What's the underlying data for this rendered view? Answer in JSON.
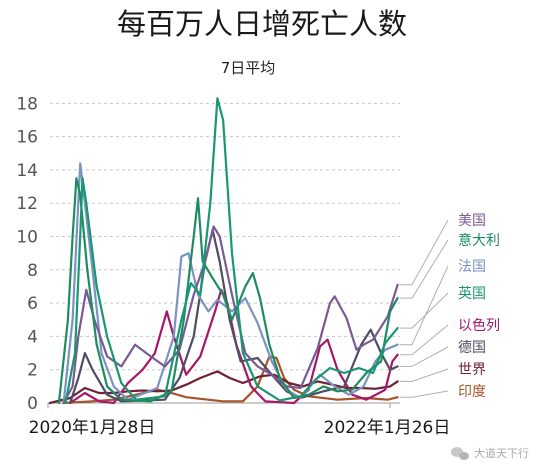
{
  "chart_data": {
    "type": "line",
    "title": "每百万人日增死亡人数",
    "subtitle": "7日平均",
    "ylim": [
      0,
      18.5
    ],
    "yticks": [
      0,
      2,
      4,
      6,
      8,
      10,
      12,
      14,
      16,
      18
    ],
    "x_tick_labels": [
      "2020年1月28日",
      "2022年1月26日"
    ],
    "grid": true,
    "legend_placement": "right",
    "series": [
      {
        "name": "美国",
        "color": "#7a5a96",
        "points": [
          [
            "2020-03-01",
            0
          ],
          [
            "2020-03-20",
            1
          ],
          [
            "2020-04-01",
            4
          ],
          [
            "2020-04-18",
            6.8
          ],
          [
            "2020-05-05",
            5
          ],
          [
            "2020-06-01",
            2.8
          ],
          [
            "2020-07-01",
            2.2
          ],
          [
            "2020-07-30",
            3.5
          ],
          [
            "2020-09-01",
            2.8
          ],
          [
            "2020-10-01",
            2.2
          ],
          [
            "2020-11-01",
            3.2
          ],
          [
            "2020-12-01",
            6.5
          ],
          [
            "2020-12-25",
            8.5
          ],
          [
            "2021-01-12",
            10.6
          ],
          [
            "2021-01-25",
            10
          ],
          [
            "2021-02-20",
            6.5
          ],
          [
            "2021-03-20",
            3
          ],
          [
            "2021-04-15",
            2.2
          ],
          [
            "2021-05-15",
            1.7
          ],
          [
            "2021-06-15",
            1
          ],
          [
            "2021-07-15",
            0.9
          ],
          [
            "2021-08-20",
            3.3
          ],
          [
            "2021-09-15",
            6
          ],
          [
            "2021-09-25",
            6.4
          ],
          [
            "2021-10-20",
            5.1
          ],
          [
            "2021-11-10",
            3.2
          ],
          [
            "2021-11-25",
            3.5
          ],
          [
            "2021-12-15",
            3.8
          ],
          [
            "2022-01-15",
            5.2
          ],
          [
            "2022-02-05",
            7.1
          ]
        ]
      },
      {
        "name": "意大利",
        "color": "#1e8c63",
        "points": [
          [
            "2020-02-20",
            0
          ],
          [
            "2020-03-10",
            5
          ],
          [
            "2020-03-20",
            10
          ],
          [
            "2020-03-28",
            13.5
          ],
          [
            "2020-04-05",
            12.5
          ],
          [
            "2020-04-20",
            8
          ],
          [
            "2020-05-10",
            3.5
          ],
          [
            "2020-06-01",
            1
          ],
          [
            "2020-07-01",
            0.2
          ],
          [
            "2020-09-01",
            0.1
          ],
          [
            "2020-10-15",
            0.7
          ],
          [
            "2020-11-10",
            5
          ],
          [
            "2020-12-01",
            10
          ],
          [
            "2020-12-10",
            12.3
          ],
          [
            "2020-12-20",
            8.5
          ],
          [
            "2021-01-10",
            7.5
          ],
          [
            "2021-02-01",
            6.5
          ],
          [
            "2021-02-20",
            5
          ],
          [
            "2021-03-20",
            7
          ],
          [
            "2021-04-05",
            7.8
          ],
          [
            "2021-04-20",
            6.3
          ],
          [
            "2021-05-10",
            3.5
          ],
          [
            "2021-06-01",
            1.5
          ],
          [
            "2021-07-01",
            0.3
          ],
          [
            "2021-08-01",
            0.5
          ],
          [
            "2021-09-01",
            1
          ],
          [
            "2021-10-01",
            0.7
          ],
          [
            "2021-11-01",
            0.8
          ],
          [
            "2021-12-01",
            1.8
          ],
          [
            "2022-01-01",
            2.5
          ],
          [
            "2022-01-20",
            5.5
          ],
          [
            "2022-02-05",
            6.3
          ]
        ]
      },
      {
        "name": "英国",
        "color": "#1a9673",
        "points": [
          [
            "2020-03-05",
            0
          ],
          [
            "2020-03-25",
            3
          ],
          [
            "2020-04-05",
            10
          ],
          [
            "2020-04-10",
            13.5
          ],
          [
            "2020-04-18",
            12
          ],
          [
            "2020-05-10",
            7
          ],
          [
            "2020-06-01",
            4
          ],
          [
            "2020-07-01",
            1.2
          ],
          [
            "2020-08-01",
            0.2
          ],
          [
            "2020-10-01",
            0.4
          ],
          [
            "2020-11-05",
            5
          ],
          [
            "2020-11-25",
            7.2
          ],
          [
            "2020-12-15",
            6.5
          ],
          [
            "2021-01-05",
            12
          ],
          [
            "2021-01-20",
            18.3
          ],
          [
            "2021-02-01",
            17
          ],
          [
            "2021-02-20",
            9
          ],
          [
            "2021-03-15",
            3
          ],
          [
            "2021-04-15",
            1
          ],
          [
            "2021-06-01",
            0.15
          ],
          [
            "2021-07-15",
            0.4
          ],
          [
            "2021-08-15",
            1.4
          ],
          [
            "2021-09-15",
            2.1
          ],
          [
            "2021-10-15",
            1.8
          ],
          [
            "2021-11-15",
            2.1
          ],
          [
            "2021-12-15",
            1.8
          ],
          [
            "2022-01-10",
            3.6
          ],
          [
            "2022-02-05",
            4.5
          ]
        ]
      },
      {
        "name": "法国",
        "color": "#7b93c2",
        "points": [
          [
            "2020-03-01",
            0
          ],
          [
            "2020-03-20",
            5
          ],
          [
            "2020-04-05",
            14.4
          ],
          [
            "2020-04-15",
            12
          ],
          [
            "2020-05-01",
            8
          ],
          [
            "2020-05-20",
            3
          ],
          [
            "2020-06-15",
            1
          ],
          [
            "2020-07-15",
            0.2
          ],
          [
            "2020-09-15",
            0.9
          ],
          [
            "2020-10-20",
            4
          ],
          [
            "2020-11-05",
            8.8
          ],
          [
            "2020-11-20",
            9
          ],
          [
            "2020-12-10",
            6.5
          ],
          [
            "2021-01-01",
            5.5
          ],
          [
            "2021-01-20",
            6.2
          ],
          [
            "2021-02-20",
            5.5
          ],
          [
            "2021-03-20",
            6.3
          ],
          [
            "2021-04-15",
            4.8
          ],
          [
            "2021-05-15",
            2.5
          ],
          [
            "2021-06-15",
            0.8
          ],
          [
            "2021-07-15",
            0.3
          ],
          [
            "2021-08-25",
            1.7
          ],
          [
            "2021-09-25",
            1
          ],
          [
            "2021-10-25",
            0.5
          ],
          [
            "2021-11-25",
            1
          ],
          [
            "2021-12-20",
            2.5
          ],
          [
            "2022-01-10",
            3.2
          ],
          [
            "2022-02-05",
            3.5
          ]
        ]
      },
      {
        "name": "以色列",
        "color": "#a5176a",
        "points": [
          [
            "2020-03-15",
            0
          ],
          [
            "2020-04-15",
            0.6
          ],
          [
            "2020-05-15",
            0.1
          ],
          [
            "2020-06-15",
            0
          ],
          [
            "2020-07-15",
            1.2
          ],
          [
            "2020-08-15",
            2
          ],
          [
            "2020-09-10",
            3
          ],
          [
            "2020-10-05",
            5.5
          ],
          [
            "2020-10-20",
            4
          ],
          [
            "2020-11-15",
            1.7
          ],
          [
            "2020-12-15",
            2.8
          ],
          [
            "2021-01-15",
            5.5
          ],
          [
            "2021-01-28",
            6.8
          ],
          [
            "2021-02-10",
            6
          ],
          [
            "2021-03-01",
            3.5
          ],
          [
            "2021-04-01",
            1
          ],
          [
            "2021-05-01",
            0.1
          ],
          [
            "2021-07-01",
            0
          ],
          [
            "2021-08-01",
            0.8
          ],
          [
            "2021-08-25",
            3.4
          ],
          [
            "2021-09-10",
            3.8
          ],
          [
            "2021-10-01",
            2
          ],
          [
            "2021-11-01",
            0.5
          ],
          [
            "2021-12-01",
            0.2
          ],
          [
            "2022-01-10",
            0.8
          ],
          [
            "2022-01-25",
            2.5
          ],
          [
            "2022-02-05",
            2.9
          ]
        ]
      },
      {
        "name": "德国",
        "color": "#4d4d63",
        "points": [
          [
            "2020-03-15",
            0
          ],
          [
            "2020-04-01",
            1.5
          ],
          [
            "2020-04-15",
            3
          ],
          [
            "2020-05-01",
            2
          ],
          [
            "2020-06-01",
            0.5
          ],
          [
            "2020-07-01",
            0.1
          ],
          [
            "2020-10-01",
            0.2
          ],
          [
            "2020-11-01",
            1.5
          ],
          [
            "2020-12-01",
            4
          ],
          [
            "2020-12-25",
            8.5
          ],
          [
            "2021-01-10",
            10.4
          ],
          [
            "2021-01-25",
            8.5
          ],
          [
            "2021-02-15",
            5
          ],
          [
            "2021-03-10",
            2.5
          ],
          [
            "2021-04-15",
            2.7
          ],
          [
            "2021-05-15",
            1.7
          ],
          [
            "2021-06-15",
            0.7
          ],
          [
            "2021-07-15",
            0.3
          ],
          [
            "2021-09-01",
            0.7
          ],
          [
            "2021-10-15",
            1
          ],
          [
            "2021-11-20",
            3.5
          ],
          [
            "2021-12-10",
            4.4
          ],
          [
            "2022-01-01",
            3
          ],
          [
            "2022-01-20",
            2
          ],
          [
            "2022-02-05",
            2.2
          ]
        ]
      },
      {
        "name": "世界",
        "color": "#6e2233",
        "points": [
          [
            "2020-02-01",
            0
          ],
          [
            "2020-03-15",
            0.3
          ],
          [
            "2020-04-15",
            0.9
          ],
          [
            "2020-05-15",
            0.6
          ],
          [
            "2020-06-15",
            0.6
          ],
          [
            "2020-07-15",
            0.7
          ],
          [
            "2020-08-15",
            0.75
          ],
          [
            "2020-09-15",
            0.7
          ],
          [
            "2020-10-15",
            0.75
          ],
          [
            "2020-11-15",
            1.1
          ],
          [
            "2020-12-15",
            1.5
          ],
          [
            "2021-01-20",
            1.9
          ],
          [
            "2021-02-15",
            1.5
          ],
          [
            "2021-03-15",
            1.2
          ],
          [
            "2021-04-20",
            1.6
          ],
          [
            "2021-05-20",
            1.7
          ],
          [
            "2021-06-20",
            1.2
          ],
          [
            "2021-07-20",
            1
          ],
          [
            "2021-08-20",
            1.3
          ],
          [
            "2021-09-20",
            1.1
          ],
          [
            "2021-10-20",
            0.9
          ],
          [
            "2021-11-20",
            0.9
          ],
          [
            "2021-12-20",
            0.85
          ],
          [
            "2022-01-20",
            1
          ],
          [
            "2022-02-05",
            1.3
          ]
        ]
      },
      {
        "name": "印度",
        "color": "#a8522a",
        "points": [
          [
            "2020-03-01",
            0
          ],
          [
            "2020-05-01",
            0.1
          ],
          [
            "2020-06-15",
            0.2
          ],
          [
            "2020-08-01",
            0.5
          ],
          [
            "2020-09-15",
            0.8
          ],
          [
            "2020-10-15",
            0.6
          ],
          [
            "2020-11-15",
            0.35
          ],
          [
            "2020-12-15",
            0.25
          ],
          [
            "2021-02-01",
            0.1
          ],
          [
            "2021-03-15",
            0.1
          ],
          [
            "2021-04-15",
            1
          ],
          [
            "2021-05-10",
            2.8
          ],
          [
            "2021-05-25",
            2.7
          ],
          [
            "2021-06-10",
            1.5
          ],
          [
            "2021-07-01",
            0.8
          ],
          [
            "2021-08-01",
            0.4
          ],
          [
            "2021-10-01",
            0.2
          ],
          [
            "2021-12-01",
            0.3
          ],
          [
            "2022-01-15",
            0.2
          ],
          [
            "2022-02-05",
            0.35
          ]
        ]
      }
    ]
  },
  "watermark": {
    "text": "大道天下行",
    "icon": "wechat-icon"
  }
}
